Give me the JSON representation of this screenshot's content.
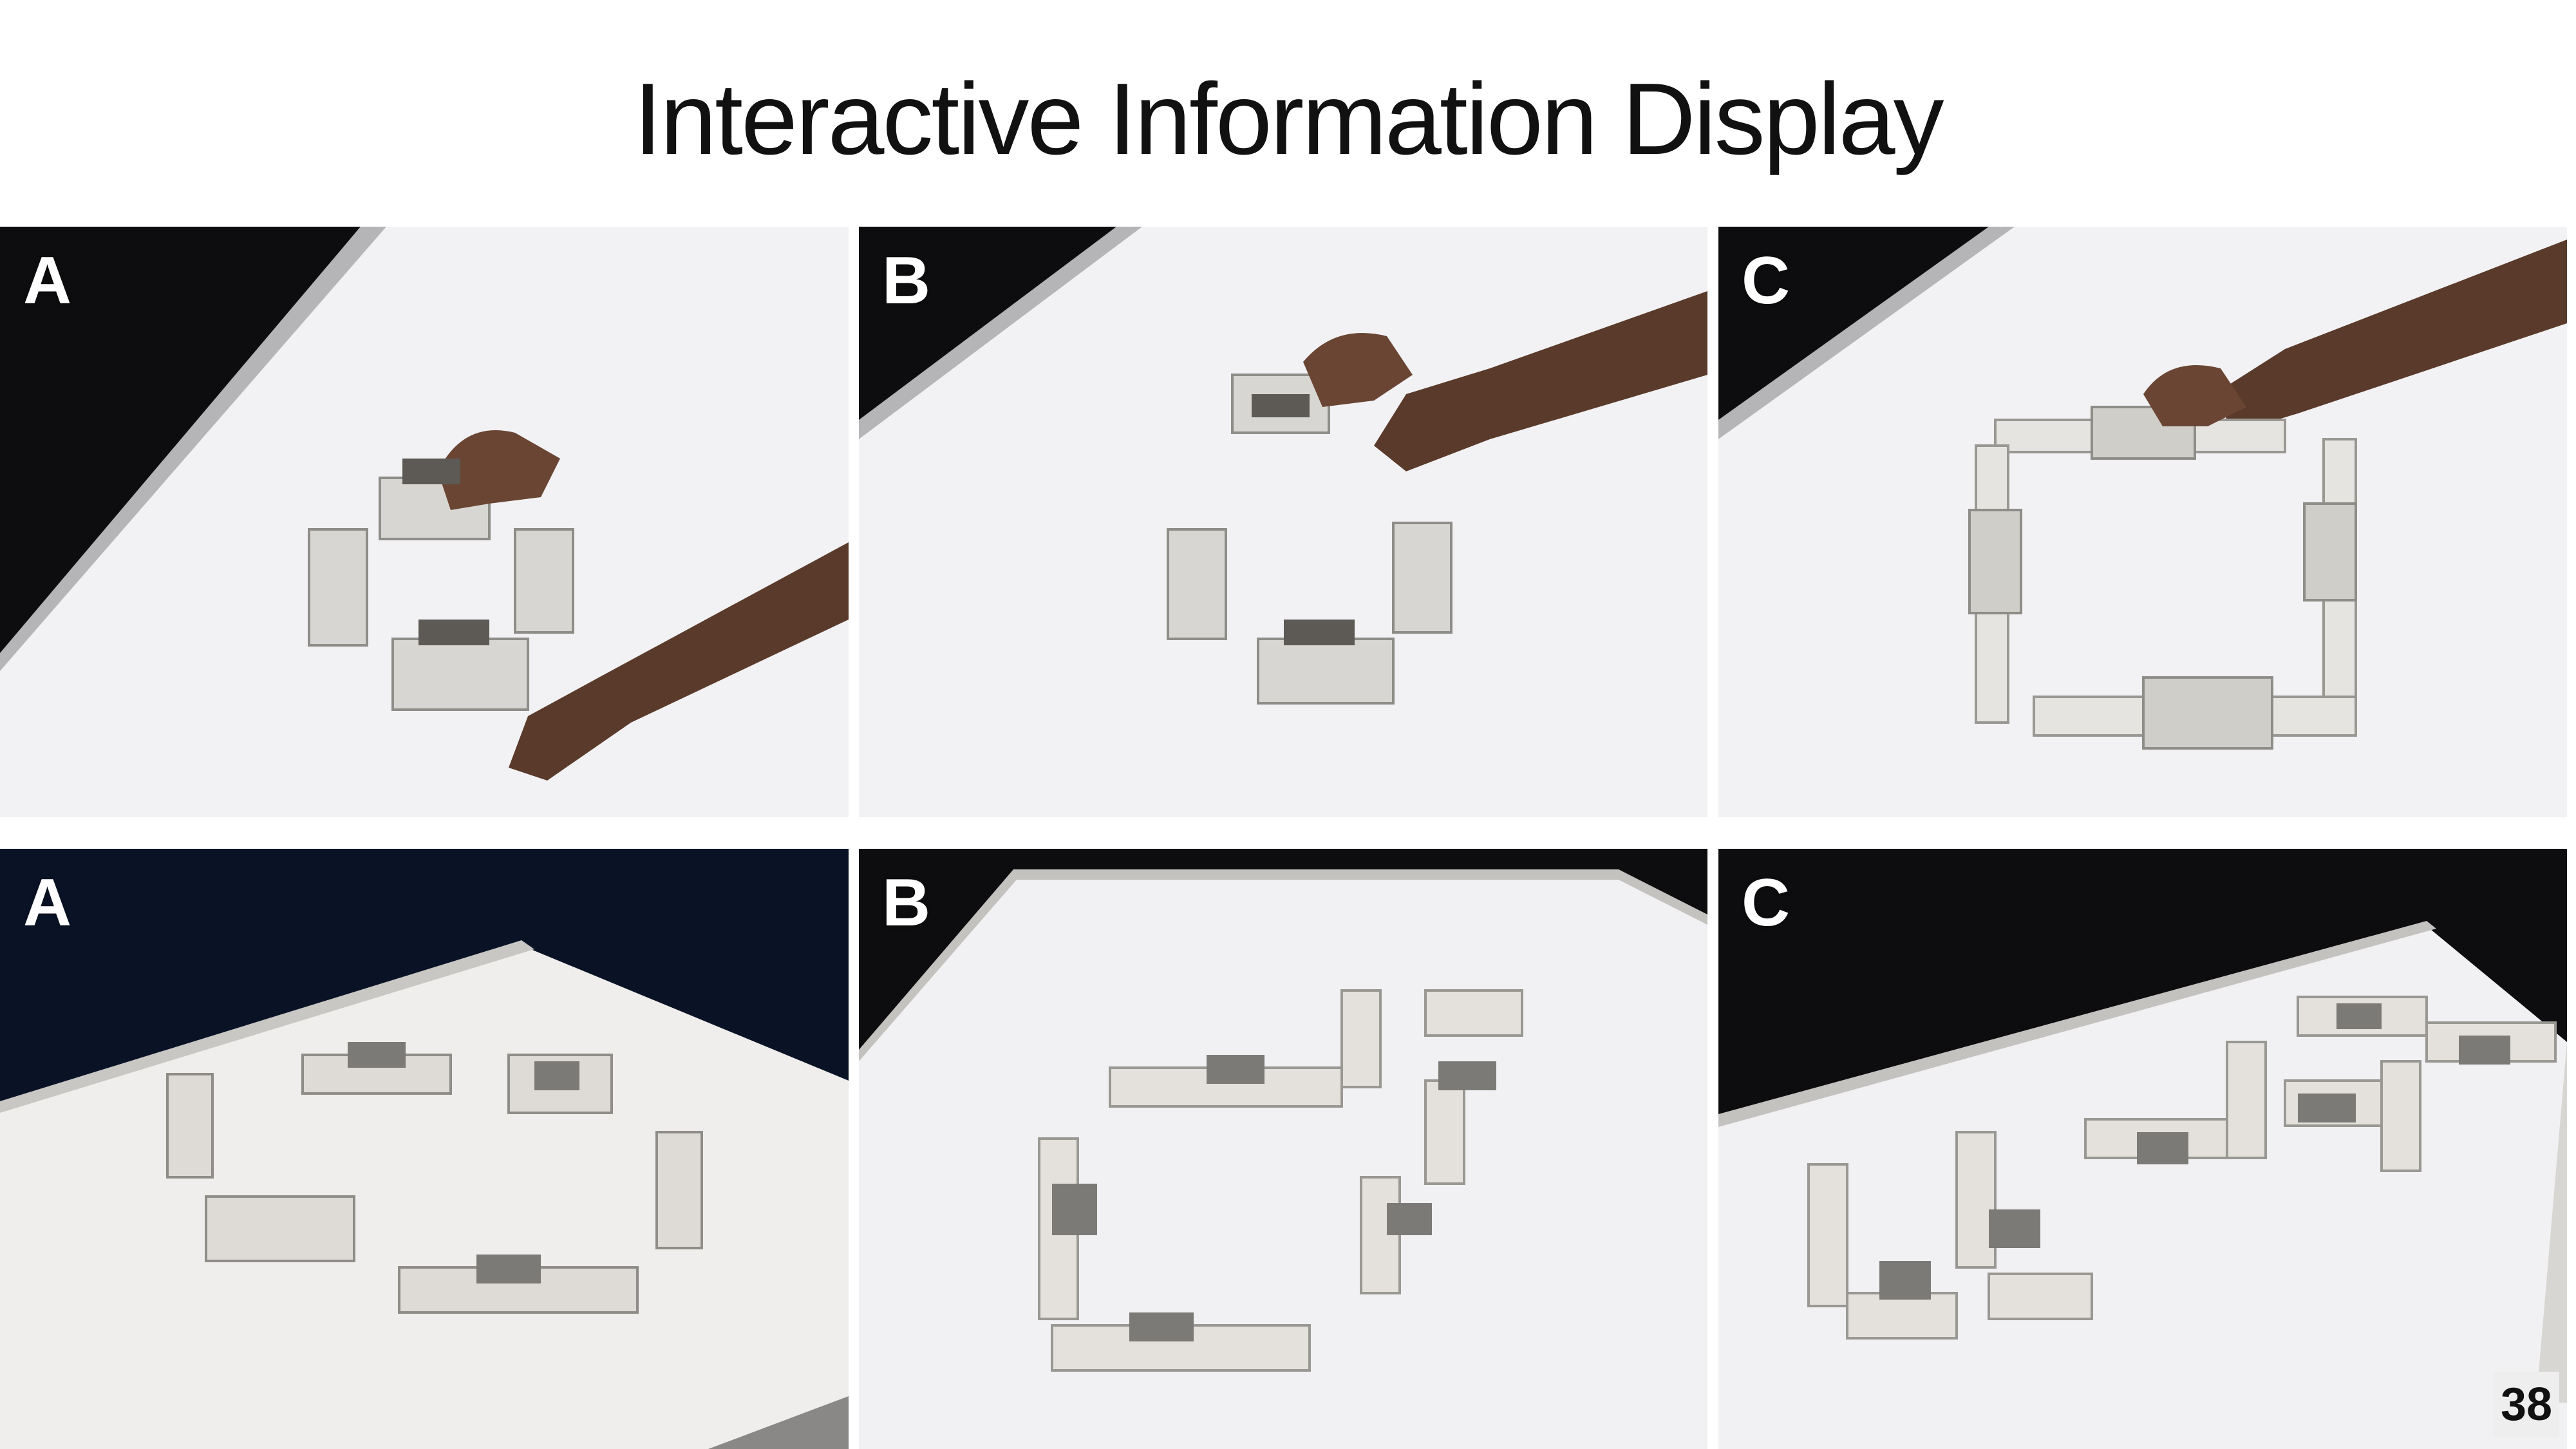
{
  "slide": {
    "title": "Interactive Information Display",
    "page_number": "38"
  },
  "rows": [
    {
      "panels": [
        {
          "label": "A",
          "scene": "hand-square-small"
        },
        {
          "label": "B",
          "scene": "hand-square-small"
        },
        {
          "label": "C",
          "scene": "hand-square-extended"
        }
      ]
    },
    {
      "panels": [
        {
          "label": "A",
          "scene": "robot-ring"
        },
        {
          "label": "B",
          "scene": "robot-loop"
        },
        {
          "label": "C",
          "scene": "robot-letters"
        }
      ]
    }
  ],
  "colors": {
    "background": "#ffffff",
    "title_text": "#111111",
    "label_text": "#ffffff",
    "dark_surround": "#0d0d0f",
    "table_surface": "#f1f1f3"
  }
}
